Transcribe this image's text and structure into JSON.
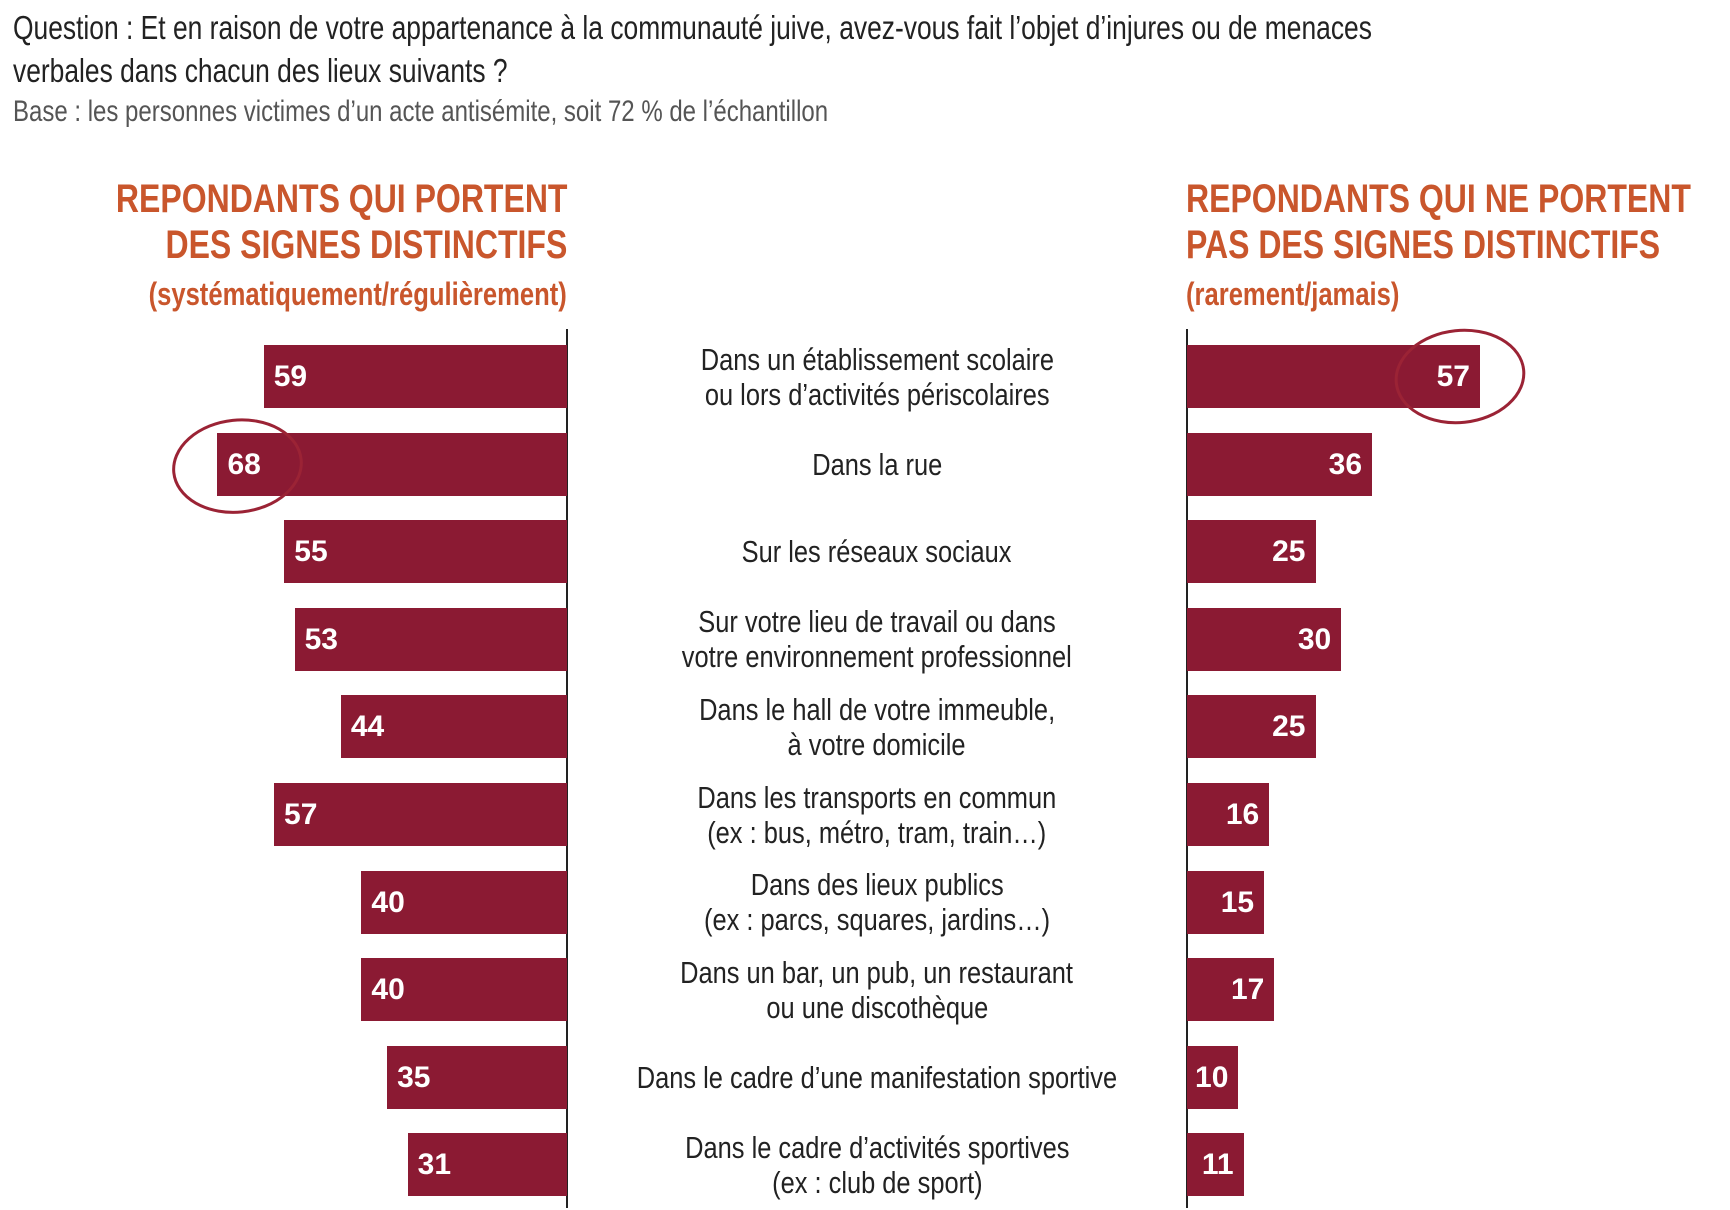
{
  "title_lines": [
    "Question : Et en raison de votre appartenance à la communauté juive, avez-vous fait l’objet d’injures ou de menaces",
    "verbales dans chacun des lieux suivants ?"
  ],
  "subtitle": "Base : les personnes victimes d’un acte antisémite, soit 72 % de l’échantillon",
  "colors": {
    "bar": "#8b1a33",
    "heading": "#c9562c",
    "circle": "#9b2335"
  },
  "chart_data": {
    "type": "bar",
    "orientation": "horizontal-butterfly",
    "categories": [
      [
        "Dans un établissement scolaire",
        "ou lors d’activités périscolaires"
      ],
      [
        "Dans la rue"
      ],
      [
        "Sur les réseaux sociaux"
      ],
      [
        "Sur votre lieu de travail ou dans",
        "votre environnement professionnel"
      ],
      [
        "Dans le hall de votre immeuble,",
        "à votre domicile"
      ],
      [
        "Dans les transports en commun",
        "(ex : bus, métro, tram, train…)"
      ],
      [
        "Dans des lieux publics",
        "(ex : parcs, squares, jardins…)"
      ],
      [
        "Dans un bar, un pub, un restaurant",
        "ou une discothèque"
      ],
      [
        "Dans le cadre d’une manifestation sportive"
      ],
      [
        "Dans le cadre d’activités sportives",
        "(ex : club de sport)"
      ]
    ],
    "series": [
      {
        "name": "left",
        "heading": [
          "REPONDANTS QUI PORTENT",
          "DES SIGNES DISTINCTIFS"
        ],
        "subheading": "(systématiquement/régulièrement)",
        "values": [
          59,
          68,
          55,
          53,
          44,
          57,
          40,
          40,
          35,
          31
        ],
        "circled_index": 1
      },
      {
        "name": "right",
        "heading": [
          "REPONDANTS QUI NE PORTENT",
          "PAS DES SIGNES DISTINCTIFS"
        ],
        "subheading": "(rarement/jamais)",
        "values": [
          57,
          36,
          25,
          30,
          25,
          16,
          15,
          17,
          10,
          11
        ],
        "circled_index": 0
      }
    ],
    "unit": "%"
  }
}
